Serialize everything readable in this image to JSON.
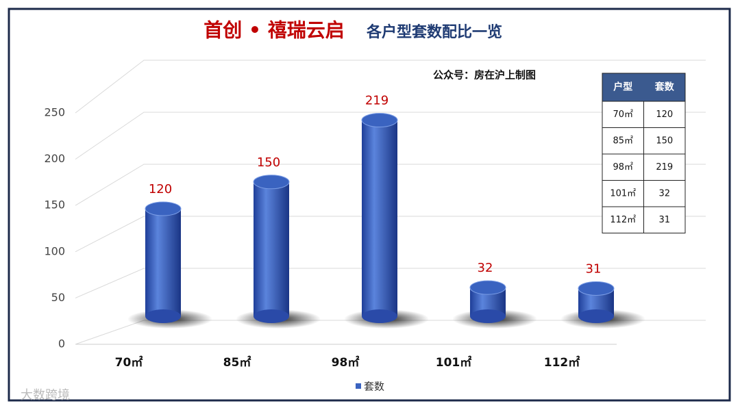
{
  "header": {
    "brand": "首创 • 禧瑞云启",
    "title": "各户型套数配比一览"
  },
  "chart_data": {
    "type": "bar3d",
    "subtitle": "公众号：房在沪上制图",
    "categories": [
      "70㎡",
      "85㎡",
      "98㎡",
      "101㎡",
      "112㎡"
    ],
    "series": [
      {
        "name": "套数",
        "color": "#3a63c0",
        "values": [
          120,
          150,
          219,
          32,
          31
        ]
      }
    ],
    "ylim": [
      0,
      250
    ],
    "yticks": [
      0,
      50,
      100,
      150,
      200,
      250
    ],
    "grid": true,
    "legend": "bottom"
  },
  "table": {
    "header": [
      "户型",
      "套数"
    ],
    "rows": [
      [
        "70㎡",
        120
      ],
      [
        "85㎡",
        150
      ],
      [
        "98㎡",
        219
      ],
      [
        "101㎡",
        32
      ],
      [
        "112㎡",
        31
      ]
    ]
  },
  "watermark": "大数跨境"
}
